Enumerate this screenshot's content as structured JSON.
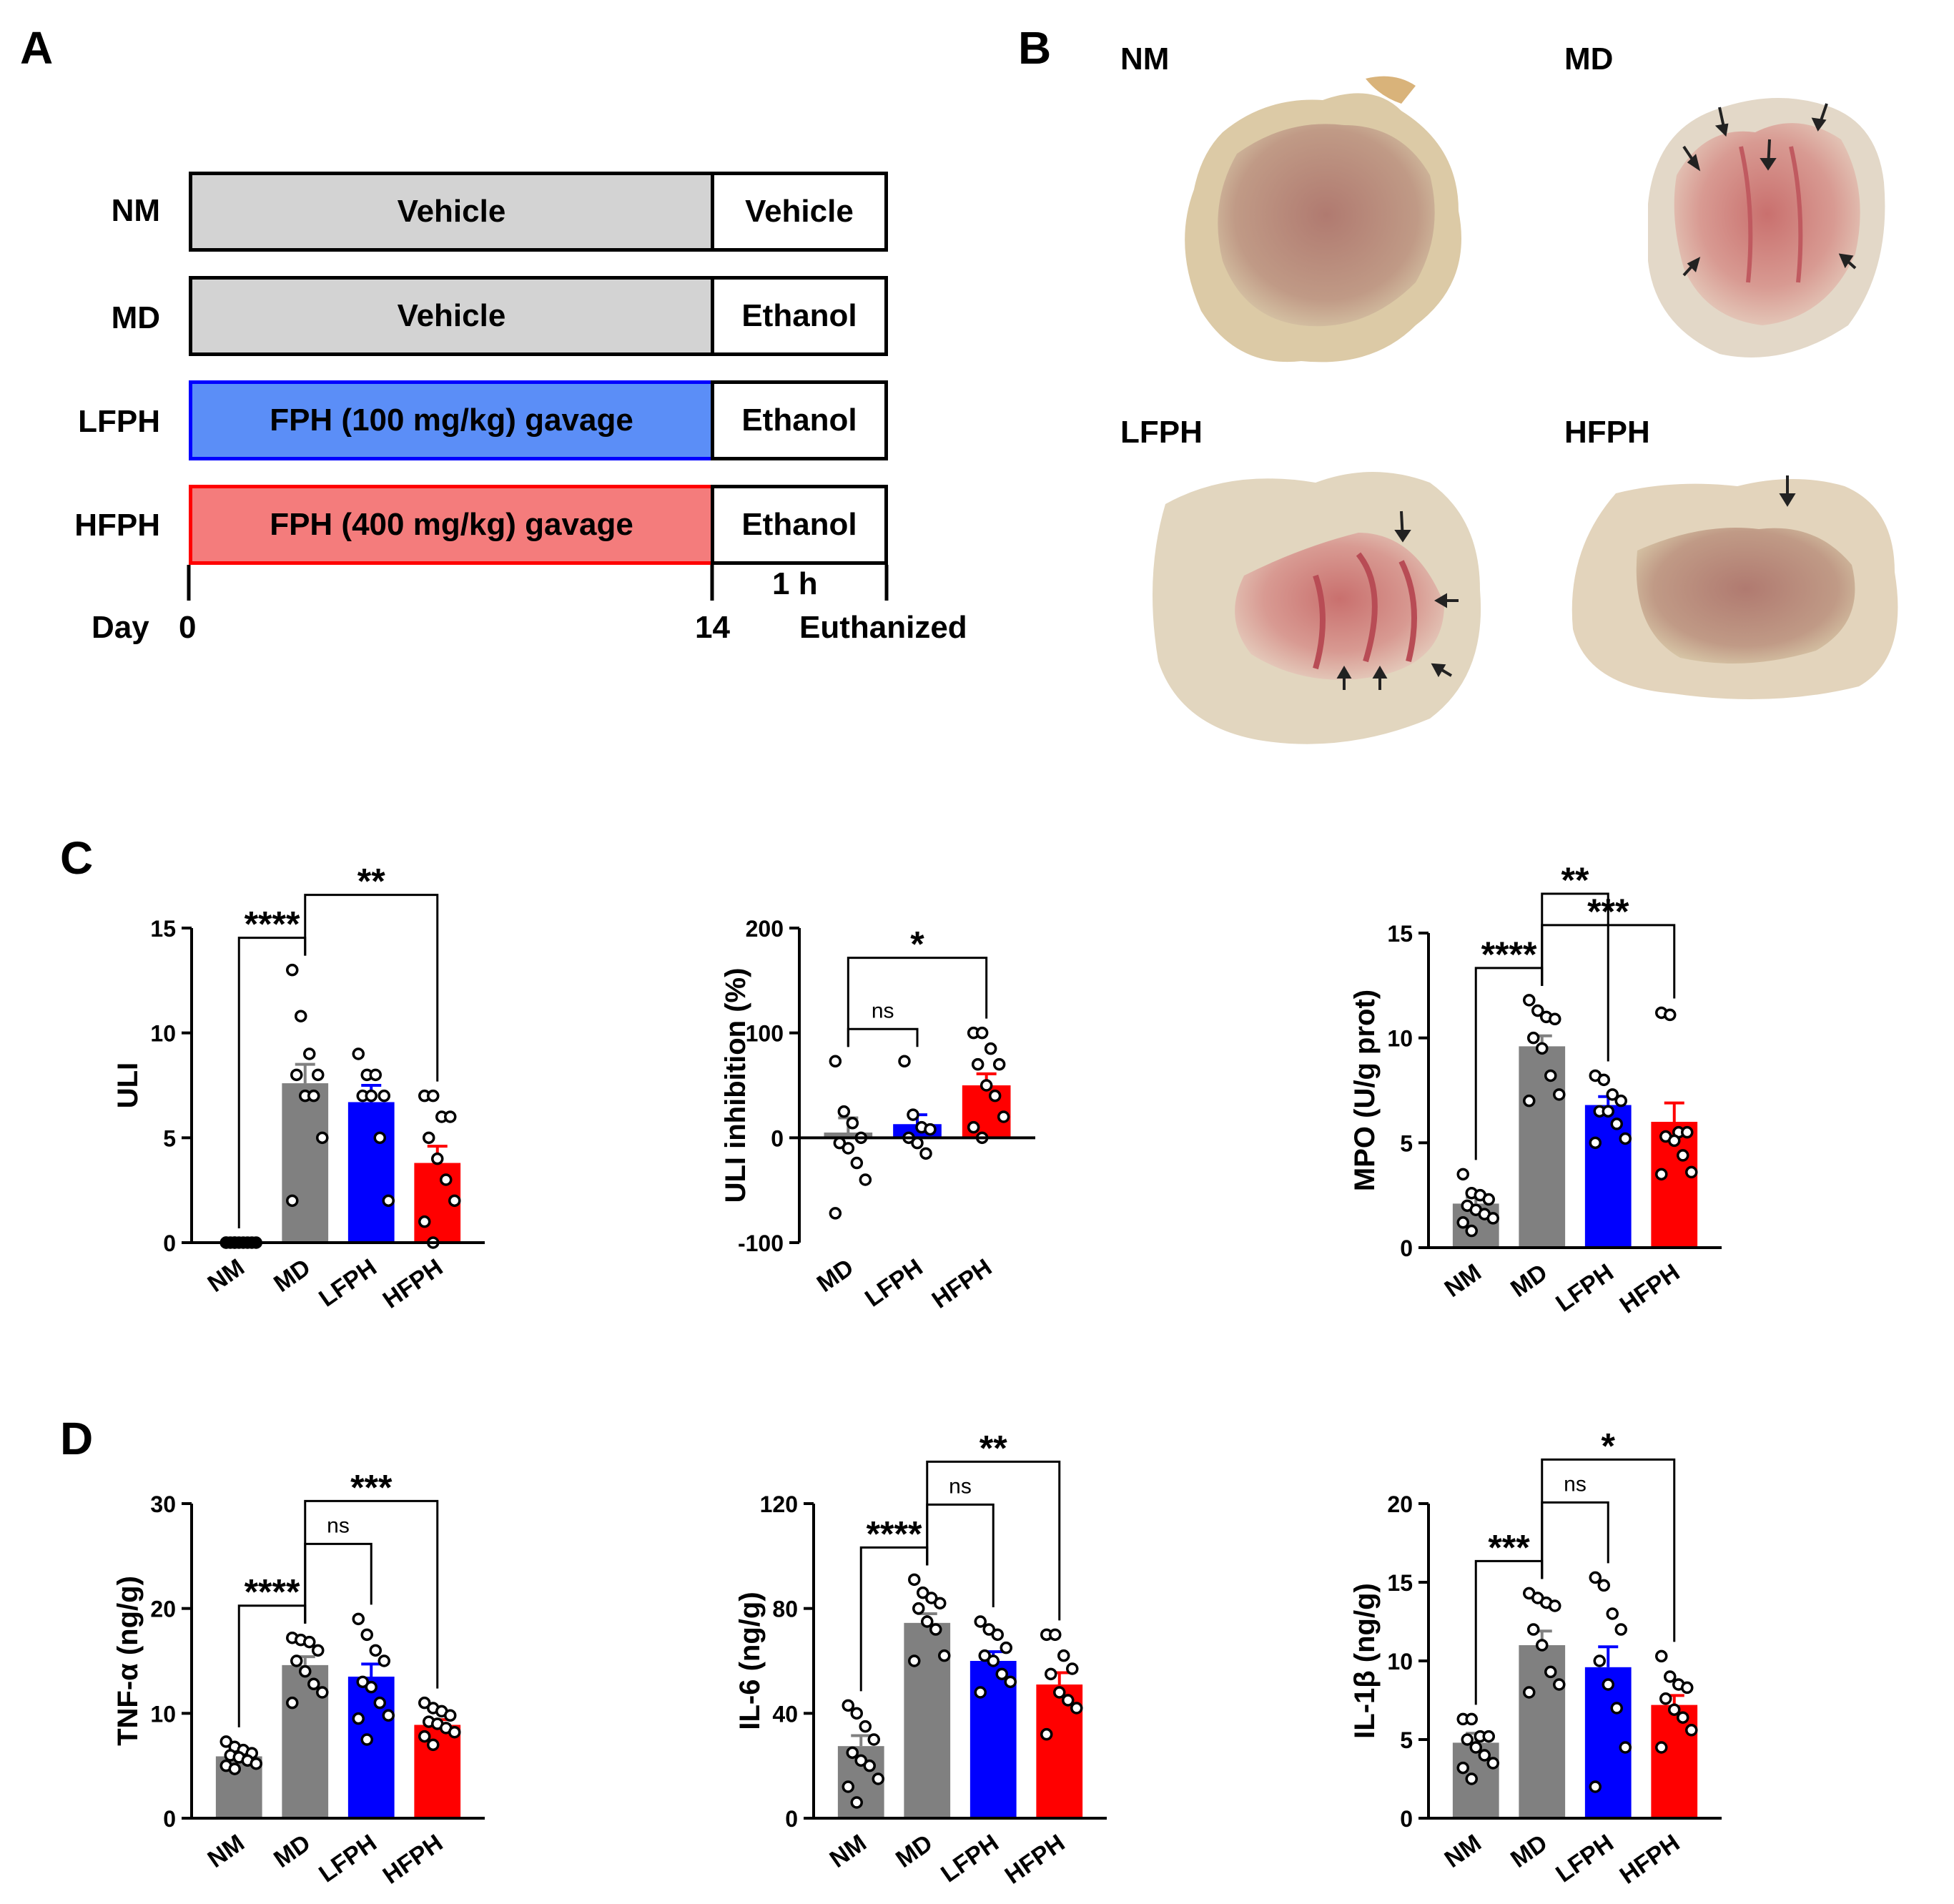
{
  "colors": {
    "NM": "#808080",
    "MD": "#808080",
    "LFPH": "#0000ff",
    "HFPH": "#ff0000",
    "ctrlFill": "#d3d3d3",
    "lfphFill": "#5b8ef7",
    "hfphFill": "#f47c7c"
  },
  "panels": {
    "a": "A",
    "b": "B",
    "c": "C",
    "d": "D"
  },
  "design": {
    "rows": [
      {
        "group": "NM",
        "treatment": "Vehicle",
        "challenge": "Vehicle",
        "fill": "ctrlFill"
      },
      {
        "group": "MD",
        "treatment": "Vehicle",
        "challenge": "Ethanol",
        "fill": "ctrlFill"
      },
      {
        "group": "LFPH",
        "treatment": "FPH  (100 mg/kg) gavage",
        "challenge": "Ethanol",
        "fill": "lfphFill",
        "border": "LFPH"
      },
      {
        "group": "HFPH",
        "treatment": "FPH  (400 mg/kg) gavage",
        "challenge": "Ethanol",
        "fill": "hfphFill",
        "border": "HFPH"
      }
    ],
    "timeline": {
      "day_label": "Day",
      "start": "0",
      "end": "14",
      "interval": "1 h",
      "endpoint": "Euthanized"
    }
  },
  "photos": [
    {
      "label": "NM",
      "arrows": 0
    },
    {
      "label": "MD",
      "arrows": 7
    },
    {
      "label": "LFPH",
      "arrows": 5
    },
    {
      "label": "HFPH",
      "arrows": 1
    }
  ],
  "chart_data": [
    {
      "id": "uli",
      "type": "bar",
      "ylabel": "ULI",
      "ylim": [
        0,
        15
      ],
      "yticks": [
        0,
        5,
        10,
        15
      ],
      "categories": [
        "NM",
        "MD",
        "LFPH",
        "HFPH"
      ],
      "means": [
        0,
        7.6,
        6.7,
        3.8
      ],
      "sem": [
        0,
        0.9,
        0.8,
        0.8
      ],
      "points": [
        [
          0,
          0,
          0,
          0,
          0,
          0,
          0,
          0,
          0,
          0
        ],
        [
          13,
          10.8,
          9,
          8,
          8,
          7,
          7,
          5,
          2
        ],
        [
          9,
          8,
          8,
          7,
          7,
          7,
          5,
          2
        ],
        [
          7,
          7,
          6,
          6,
          5,
          4,
          3,
          2,
          1,
          0
        ]
      ],
      "comparisons": [
        {
          "from": 0,
          "to": 1,
          "label": "****"
        },
        {
          "from": 1,
          "to": 3,
          "label": "**"
        }
      ]
    },
    {
      "id": "uli_inhibition",
      "type": "bar",
      "ylabel": "ULI inhibition (%)",
      "ylim": [
        -100,
        200
      ],
      "yticks": [
        -100,
        0,
        100,
        200
      ],
      "categories": [
        "MD",
        "LFPH",
        "HFPH"
      ],
      "means": [
        5,
        13,
        50
      ],
      "sem": [
        14,
        9,
        11
      ],
      "points": [
        [
          73,
          25,
          14,
          0,
          -5,
          -10,
          -24,
          -40,
          -72
        ],
        [
          73,
          22,
          10,
          8,
          0,
          -5,
          -15
        ],
        [
          100,
          100,
          85,
          70,
          70,
          50,
          40,
          20,
          10,
          0
        ]
      ],
      "comparisons": [
        {
          "from": 0,
          "to": 1,
          "label": "ns"
        },
        {
          "from": 0,
          "to": 2,
          "label": "*"
        }
      ]
    },
    {
      "id": "mpo",
      "type": "bar",
      "ylabel": "MPO (U/g prot)",
      "ylim": [
        0,
        15
      ],
      "yticks": [
        0,
        5,
        10,
        15
      ],
      "categories": [
        "NM",
        "MD",
        "LFPH",
        "HFPH"
      ],
      "means": [
        2.1,
        9.6,
        6.8,
        6.0
      ],
      "sem": [
        0.3,
        0.5,
        0.4,
        0.9
      ],
      "points": [
        [
          3.5,
          2.6,
          2.5,
          2.3,
          2,
          1.8,
          1.6,
          1.4,
          1.2,
          0.8
        ],
        [
          11.8,
          11.3,
          11,
          10.9,
          10,
          9.5,
          8.2,
          7.3,
          7
        ],
        [
          8.2,
          8,
          7.3,
          7,
          6.5,
          6.5,
          5.9,
          5.2,
          5
        ],
        [
          11.2,
          11.1,
          5.5,
          5.5,
          5.3,
          5.1,
          4.4,
          3.6,
          3.5
        ]
      ],
      "comparisons": [
        {
          "from": 0,
          "to": 1,
          "label": "****"
        },
        {
          "from": 1,
          "to": 3,
          "label": "***"
        },
        {
          "from": 1,
          "to": 2,
          "label": "**"
        }
      ]
    },
    {
      "id": "tnf",
      "type": "bar",
      "ylabel": "TNF-α (ng/g)",
      "ylim": [
        0,
        30
      ],
      "yticks": [
        0,
        10,
        20,
        30
      ],
      "categories": [
        "NM",
        "MD",
        "LFPH",
        "HFPH"
      ],
      "means": [
        5.9,
        14.6,
        13.5,
        8.9
      ],
      "sem": [
        0.3,
        0.8,
        1.2,
        0.5
      ],
      "points": [
        [
          7.3,
          6.8,
          6.5,
          6.2,
          6,
          5.8,
          5.5,
          5.2,
          5,
          4.7
        ],
        [
          17.2,
          17,
          16.8,
          16,
          15,
          14,
          12.8,
          12,
          11
        ],
        [
          19,
          17.5,
          16,
          15,
          13,
          12.5,
          11,
          9.8,
          9.5,
          7.5
        ],
        [
          11,
          10.5,
          10.2,
          9.8,
          9.2,
          9,
          8.6,
          8.2,
          7.8,
          7
        ]
      ],
      "comparisons": [
        {
          "from": 0,
          "to": 1,
          "label": "****"
        },
        {
          "from": 1,
          "to": 2,
          "label": "ns"
        },
        {
          "from": 1,
          "to": 3,
          "label": "***"
        }
      ]
    },
    {
      "id": "il6",
      "type": "bar",
      "ylabel": "IL-6 (ng/g)",
      "ylim": [
        0,
        120
      ],
      "yticks": [
        0,
        40,
        80,
        120
      ],
      "categories": [
        "NM",
        "MD",
        "LFPH",
        "HFPH"
      ],
      "means": [
        27.5,
        74.5,
        60,
        51
      ],
      "sem": [
        4,
        3.5,
        3.5,
        4.5
      ],
      "points": [
        [
          43,
          40,
          35,
          30,
          25,
          22,
          20,
          15,
          12,
          6
        ],
        [
          91,
          86,
          84,
          82,
          80,
          75,
          72,
          62,
          60
        ],
        [
          75,
          72,
          70,
          65,
          62,
          60,
          55,
          52,
          48
        ],
        [
          70,
          70,
          62,
          57,
          55,
          48,
          45,
          42,
          32
        ]
      ],
      "comparisons": [
        {
          "from": 0,
          "to": 1,
          "label": "****"
        },
        {
          "from": 1,
          "to": 2,
          "label": "ns"
        },
        {
          "from": 1,
          "to": 3,
          "label": "**"
        }
      ]
    },
    {
      "id": "il1b",
      "type": "bar",
      "ylabel": "IL-1β (ng/g)",
      "ylim": [
        0,
        20
      ],
      "yticks": [
        0,
        5,
        10,
        15,
        20
      ],
      "categories": [
        "NM",
        "MD",
        "LFPH",
        "HFPH"
      ],
      "means": [
        4.8,
        11,
        9.6,
        7.2
      ],
      "sem": [
        0.6,
        0.9,
        1.3,
        0.6
      ],
      "points": [
        [
          6.3,
          6.3,
          5.2,
          5.2,
          5,
          4.5,
          4,
          3.5,
          3.2,
          2.5
        ],
        [
          14.3,
          14,
          13.7,
          13.5,
          12,
          11,
          9.3,
          8.5,
          8
        ],
        [
          15.3,
          14.8,
          13,
          12,
          10,
          8.5,
          7,
          4.5,
          2
        ],
        [
          10.3,
          9,
          8.5,
          8.3,
          7.6,
          6.9,
          6.4,
          5.6,
          4.5
        ]
      ],
      "comparisons": [
        {
          "from": 0,
          "to": 1,
          "label": "***"
        },
        {
          "from": 1,
          "to": 2,
          "label": "ns"
        },
        {
          "from": 1,
          "to": 3,
          "label": "*"
        }
      ]
    }
  ]
}
